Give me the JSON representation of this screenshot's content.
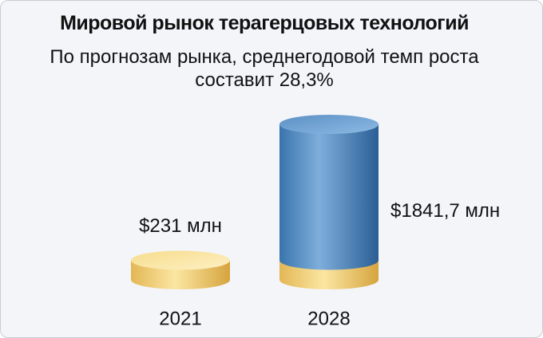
{
  "chart_data": {
    "type": "bar",
    "title": "Мировой рынок терагерцовых технологий",
    "subtitle": "По прогнозам рынка, среднегодовой темп роста составит 28,3%",
    "categories": [
      "2021",
      "2028"
    ],
    "values": [
      231,
      1841.7
    ],
    "value_labels": [
      "$231 млн",
      "$1841,7 млн"
    ]
  }
}
